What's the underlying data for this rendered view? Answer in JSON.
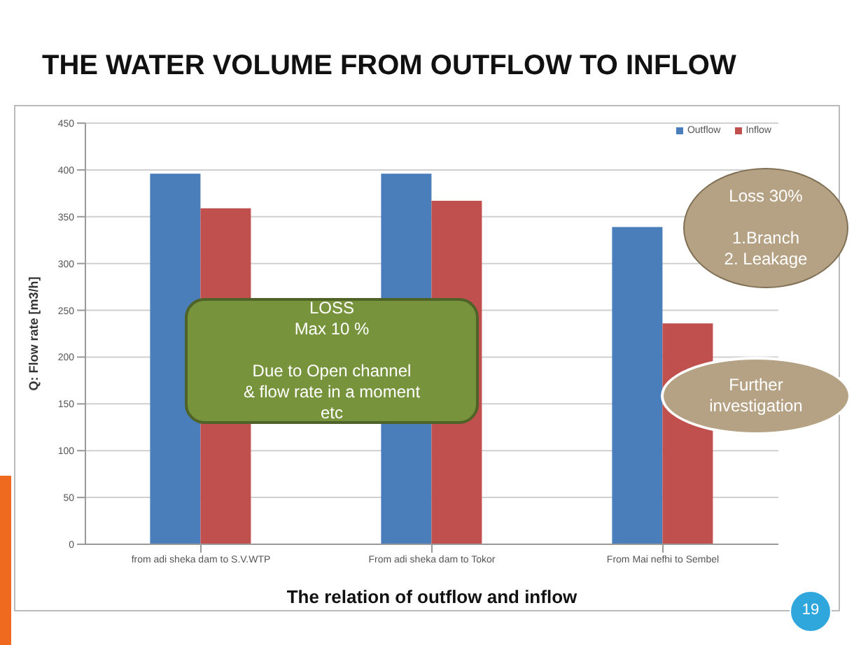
{
  "chart_data": {
    "type": "bar",
    "title": "THE WATER VOLUME FROM OUTFLOW TO INFLOW",
    "xlabel": "The relation of outflow and inflow",
    "ylabel": "Q: Flow rate [m3/h]",
    "categories": [
      "from adi sheka dam to S.V.WTP",
      "From adi sheka dam to Tokor",
      "From Mai nefhi to Sembel"
    ],
    "series": [
      {
        "name": "Outflow",
        "color": "#4a7ebb",
        "values": [
          396,
          396,
          339
        ]
      },
      {
        "name": "Inflow",
        "color": "#c0504d",
        "values": [
          359,
          367,
          236
        ]
      }
    ],
    "ylim": [
      0,
      450
    ],
    "yticks": [
      0,
      50,
      100,
      150,
      200,
      250,
      300,
      350,
      400,
      450
    ],
    "grid": "y",
    "legend": "top right",
    "annotations": [
      "LOSS\nMax 10 %\n\nDue to Open channel\n& flow rate in a moment\netc",
      "Loss 30%\n\n1.Branch\n2. Leakage",
      "Further\ninvestigation",
      "19"
    ]
  }
}
